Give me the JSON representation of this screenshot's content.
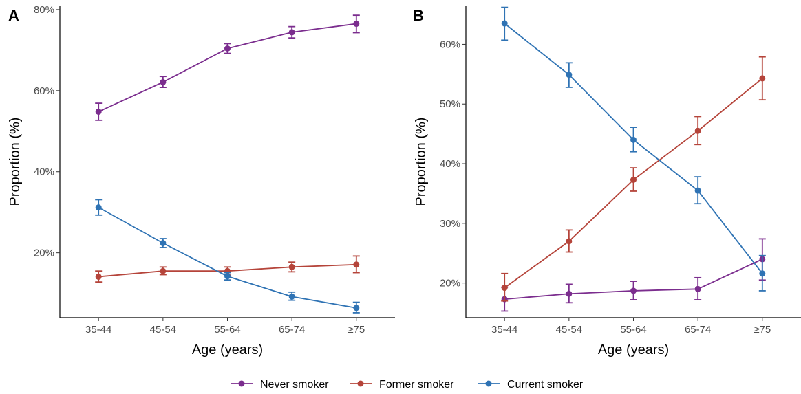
{
  "legend": {
    "items": [
      {
        "label": "Never smoker",
        "color": "#7B2D8E"
      },
      {
        "label": "Former smoker",
        "color": "#B5443A"
      },
      {
        "label": "Current smoker",
        "color": "#2F73B4"
      }
    ]
  },
  "chart_data": [
    {
      "type": "line",
      "panel_label": "A",
      "xlabel": "Age (years)",
      "ylabel": "Proportion (%)",
      "categories": [
        "35-44",
        "45-54",
        "55-64",
        "65-74",
        "≥75"
      ],
      "ylim": [
        4,
        81
      ],
      "yticks": [
        20,
        40,
        60,
        80
      ],
      "ytick_labels": [
        "20%",
        "40%",
        "60%",
        "80%"
      ],
      "grid": false,
      "legend_position": "bottom",
      "series": [
        {
          "name": "Never smoker",
          "color": "#7B2D8E",
          "values": [
            54.8,
            62.1,
            70.4,
            74.4,
            76.5
          ],
          "lower": [
            52.7,
            60.8,
            69.2,
            73.0,
            74.3
          ],
          "upper": [
            56.9,
            63.5,
            71.6,
            75.8,
            78.6
          ]
        },
        {
          "name": "Former smoker",
          "color": "#B5443A",
          "values": [
            14.1,
            15.5,
            15.5,
            16.5,
            17.1
          ],
          "lower": [
            12.8,
            14.6,
            14.5,
            15.3,
            15.1
          ],
          "upper": [
            15.5,
            16.5,
            16.5,
            17.7,
            19.2
          ]
        },
        {
          "name": "Current smoker",
          "color": "#2F73B4",
          "values": [
            31.2,
            22.4,
            14.2,
            9.2,
            6.4
          ],
          "lower": [
            29.3,
            21.3,
            13.3,
            8.3,
            5.2
          ],
          "upper": [
            33.1,
            23.5,
            15.1,
            10.3,
            7.8
          ]
        }
      ]
    },
    {
      "type": "line",
      "panel_label": "B",
      "xlabel": "Age (years)",
      "ylabel": "Proportion (%)",
      "categories": [
        "35-44",
        "45-54",
        "55-64",
        "65-74",
        "≥75"
      ],
      "ylim": [
        14.2,
        66.5
      ],
      "yticks": [
        20,
        30,
        40,
        50,
        60
      ],
      "ytick_labels": [
        "20%",
        "30%",
        "40%",
        "50%",
        "60%"
      ],
      "grid": false,
      "legend_position": "bottom",
      "series": [
        {
          "name": "Never smoker",
          "color": "#7B2D8E",
          "values": [
            17.3,
            18.2,
            18.7,
            19.0,
            24.0
          ],
          "lower": [
            15.3,
            16.7,
            17.2,
            17.2,
            20.5
          ],
          "upper": [
            19.3,
            19.8,
            20.3,
            20.9,
            27.4
          ]
        },
        {
          "name": "Former smoker",
          "color": "#B5443A",
          "values": [
            19.2,
            27.0,
            37.3,
            45.5,
            54.3
          ],
          "lower": [
            17.0,
            25.2,
            35.4,
            43.2,
            50.7
          ],
          "upper": [
            21.6,
            28.9,
            39.3,
            47.9,
            57.9
          ]
        },
        {
          "name": "Current smoker",
          "color": "#2F73B4",
          "values": [
            63.5,
            54.9,
            44.0,
            35.5,
            21.6
          ],
          "lower": [
            60.7,
            52.8,
            42.0,
            33.3,
            18.7
          ],
          "upper": [
            66.2,
            56.9,
            46.1,
            37.8,
            24.6
          ]
        }
      ]
    }
  ]
}
